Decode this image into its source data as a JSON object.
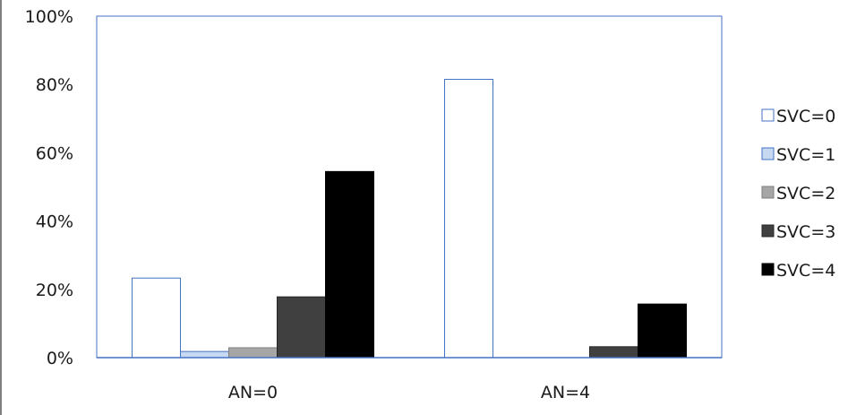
{
  "chart_data": {
    "type": "bar",
    "title": "",
    "xlabel": "",
    "ylabel": "",
    "categories": [
      "AN=0",
      "AN=4"
    ],
    "ylim": [
      0,
      100
    ],
    "yticks": [
      "0%",
      "20%",
      "40%",
      "60%",
      "80%",
      "100%"
    ],
    "grid": false,
    "legend_position": "right",
    "series": [
      {
        "name": "SVC=0",
        "values": [
          23.3,
          81.5
        ],
        "fill": "#ffffff",
        "stroke": "#4472c4"
      },
      {
        "name": "SVC=1",
        "values": [
          1.8,
          0
        ],
        "fill": "#c6d9f1",
        "stroke": "#4472c4"
      },
      {
        "name": "SVC=2",
        "values": [
          2.9,
          0
        ],
        "fill": "#a6a6a6",
        "stroke": "#7f7f7f"
      },
      {
        "name": "SVC=3",
        "values": [
          17.8,
          3.2
        ],
        "fill": "#404040",
        "stroke": "#262626"
      },
      {
        "name": "SVC=4",
        "values": [
          54.5,
          15.7
        ],
        "fill": "#000000",
        "stroke": "#000000"
      }
    ]
  }
}
